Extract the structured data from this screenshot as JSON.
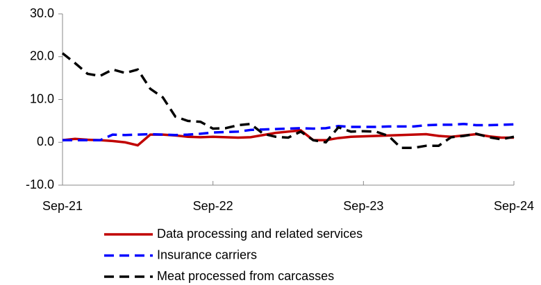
{
  "chart_data": {
    "type": "line",
    "categories": [
      "Sep-21",
      null,
      null,
      null,
      null,
      null,
      null,
      null,
      null,
      null,
      null,
      null,
      "Sep-22",
      null,
      null,
      null,
      null,
      null,
      null,
      null,
      null,
      null,
      null,
      null,
      "Sep-23",
      null,
      null,
      null,
      null,
      null,
      null,
      null,
      null,
      null,
      null,
      null,
      "Sep-24"
    ],
    "series": [
      {
        "name": "Data processing and related services",
        "color": "#c00000",
        "dash": "solid",
        "values": [
          0.5,
          0.8,
          0.6,
          0.5,
          0.3,
          0,
          -0.7,
          1.8,
          1.8,
          1.6,
          1.3,
          1.2,
          1.3,
          1.2,
          1.1,
          1.2,
          1.7,
          2.2,
          2.5,
          2.8,
          0.5,
          0.5,
          1,
          1.3,
          1.4,
          1.5,
          1.6,
          1.7,
          1.8,
          1.9,
          1.5,
          1.3,
          1.6,
          1.9,
          1.4,
          1.1,
          1.1
        ]
      },
      {
        "name": "Insurance carriers",
        "color": "#0000ff",
        "dash": "dash",
        "values": [
          0.5,
          0.5,
          0.5,
          0.5,
          1.8,
          1.7,
          1.8,
          1.9,
          1.8,
          1.7,
          1.8,
          2,
          2.3,
          2.4,
          2.5,
          2.9,
          3,
          3.1,
          3.2,
          3.3,
          3.2,
          3.3,
          3.8,
          3.6,
          3.6,
          3.6,
          3.7,
          3.7,
          3.7,
          4,
          4.1,
          4.1,
          4.3,
          4,
          4,
          4.1,
          4.2
        ]
      },
      {
        "name": "Meat processed from carcasses",
        "color": "#000000",
        "dash": "dash",
        "values": [
          20.8,
          18.5,
          16,
          15.5,
          17,
          16.2,
          17,
          12.5,
          10.5,
          6,
          5,
          4.8,
          3.2,
          3.3,
          4,
          4.3,
          2,
          1.3,
          1.1,
          2.5,
          0.5,
          0,
          3.5,
          2.5,
          2.6,
          2.5,
          1.5,
          -1.3,
          -1.3,
          -0.8,
          -0.8,
          1.2,
          1.5,
          2,
          1.2,
          0.7,
          1.3
        ]
      }
    ],
    "ylim": [
      -10,
      30
    ],
    "yticks": [
      {
        "value": -10,
        "label": "-10.0"
      },
      {
        "value": 0,
        "label": "0.0"
      },
      {
        "value": 10,
        "label": "10.0"
      },
      {
        "value": 20,
        "label": "20.0"
      },
      {
        "value": 30,
        "label": "30.0"
      }
    ],
    "legend": "bottom"
  }
}
